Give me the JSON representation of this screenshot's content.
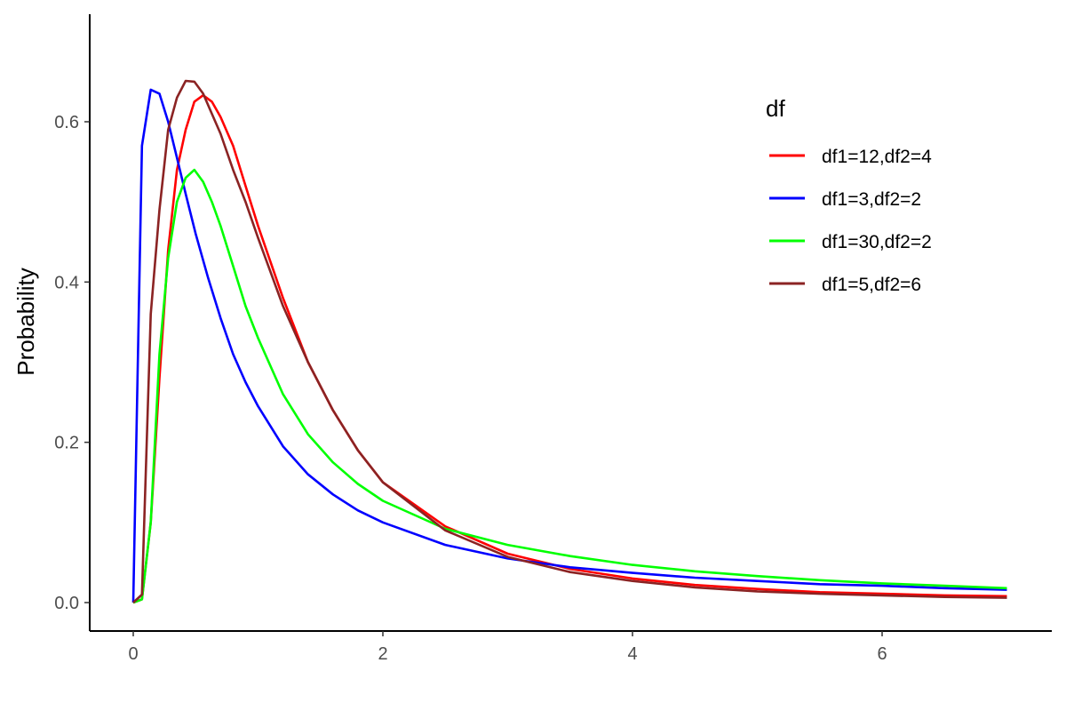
{
  "chart_data": {
    "type": "line",
    "title": "",
    "xlabel": "",
    "ylabel": "Probability",
    "xlim": [
      0,
      7
    ],
    "ylim": [
      0,
      0.7
    ],
    "x_ticks": [
      "0",
      "2",
      "4",
      "6"
    ],
    "y_ticks": [
      "0.0",
      "0.2",
      "0.4",
      "0.6"
    ],
    "grid": false,
    "legend": {
      "title": "df",
      "position": "right"
    },
    "series": [
      {
        "name": "df1=12,df2=4",
        "color": "#ff0000",
        "x": [
          0,
          0.07,
          0.14,
          0.21,
          0.28,
          0.35,
          0.42,
          0.49,
          0.56,
          0.63,
          0.7,
          0.8,
          0.9,
          1.0,
          1.2,
          1.4,
          1.6,
          1.8,
          2.0,
          2.5,
          3.0,
          3.5,
          4.0,
          4.5,
          5.0,
          5.5,
          6.0,
          6.5,
          7.0
        ],
        "y": [
          0,
          0.004,
          0.1,
          0.28,
          0.44,
          0.54,
          0.59,
          0.625,
          0.633,
          0.625,
          0.606,
          0.57,
          0.52,
          0.47,
          0.38,
          0.3,
          0.24,
          0.19,
          0.15,
          0.095,
          0.061,
          0.042,
          0.03,
          0.022,
          0.017,
          0.013,
          0.011,
          0.009,
          0.008
        ]
      },
      {
        "name": "df1=3,df2=2",
        "color": "#0000ff",
        "x": [
          0,
          0.07,
          0.14,
          0.21,
          0.28,
          0.35,
          0.42,
          0.5,
          0.6,
          0.7,
          0.8,
          0.9,
          1.0,
          1.2,
          1.4,
          1.6,
          1.8,
          2.0,
          2.5,
          3.0,
          3.5,
          4.0,
          4.5,
          5.0,
          5.5,
          6.0,
          6.5,
          7.0
        ],
        "y": [
          0,
          0.57,
          0.64,
          0.635,
          0.6,
          0.555,
          0.51,
          0.46,
          0.405,
          0.355,
          0.31,
          0.275,
          0.245,
          0.195,
          0.16,
          0.135,
          0.115,
          0.1,
          0.072,
          0.055,
          0.044,
          0.037,
          0.031,
          0.027,
          0.023,
          0.021,
          0.018,
          0.016
        ]
      },
      {
        "name": "df1=30,df2=2",
        "color": "#00ff00",
        "x": [
          0,
          0.07,
          0.14,
          0.21,
          0.28,
          0.35,
          0.42,
          0.49,
          0.56,
          0.63,
          0.7,
          0.8,
          0.9,
          1.0,
          1.2,
          1.4,
          1.6,
          1.8,
          2.0,
          2.5,
          3.0,
          3.5,
          4.0,
          4.5,
          5.0,
          5.5,
          6.0,
          6.5,
          7.0
        ],
        "y": [
          0,
          0.004,
          0.1,
          0.31,
          0.43,
          0.5,
          0.53,
          0.54,
          0.525,
          0.5,
          0.47,
          0.42,
          0.37,
          0.33,
          0.26,
          0.21,
          0.175,
          0.148,
          0.127,
          0.092,
          0.072,
          0.058,
          0.047,
          0.039,
          0.033,
          0.028,
          0.024,
          0.021,
          0.018
        ]
      },
      {
        "name": "df1=5,df2=6",
        "color": "#8b2323",
        "x": [
          0,
          0.07,
          0.14,
          0.21,
          0.28,
          0.35,
          0.42,
          0.49,
          0.56,
          0.63,
          0.7,
          0.8,
          0.9,
          1.0,
          1.2,
          1.4,
          1.6,
          1.8,
          2.0,
          2.5,
          3.0,
          3.5,
          4.0,
          4.5,
          5.0,
          5.5,
          6.0,
          6.5,
          7.0
        ],
        "y": [
          0,
          0.01,
          0.36,
          0.49,
          0.59,
          0.63,
          0.651,
          0.65,
          0.635,
          0.61,
          0.585,
          0.54,
          0.5,
          0.455,
          0.37,
          0.3,
          0.24,
          0.19,
          0.15,
          0.09,
          0.057,
          0.038,
          0.027,
          0.019,
          0.014,
          0.011,
          0.009,
          0.007,
          0.006
        ]
      }
    ]
  }
}
